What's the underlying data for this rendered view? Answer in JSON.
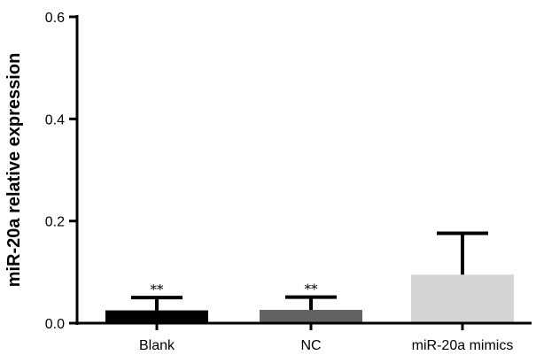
{
  "chart_data": {
    "type": "bar",
    "title": "",
    "xlabel": "",
    "ylabel": "miR-20a relative expression",
    "ylim": [
      0,
      0.6
    ],
    "yticks": [
      0.0,
      0.2,
      0.4,
      0.6
    ],
    "ytick_labels": [
      "0.0",
      "0.2",
      "0.4",
      "0.6"
    ],
    "categories": [
      "Blank",
      "NC",
      "miR-20a mimics"
    ],
    "values": [
      0.025,
      0.026,
      0.095
    ],
    "error_upper": [
      0.05,
      0.051,
      0.176
    ],
    "significance": [
      "**",
      "**",
      ""
    ],
    "colors": [
      "#000000",
      "#636363",
      "#d4d4d4"
    ],
    "grid": false,
    "legend": "none"
  }
}
